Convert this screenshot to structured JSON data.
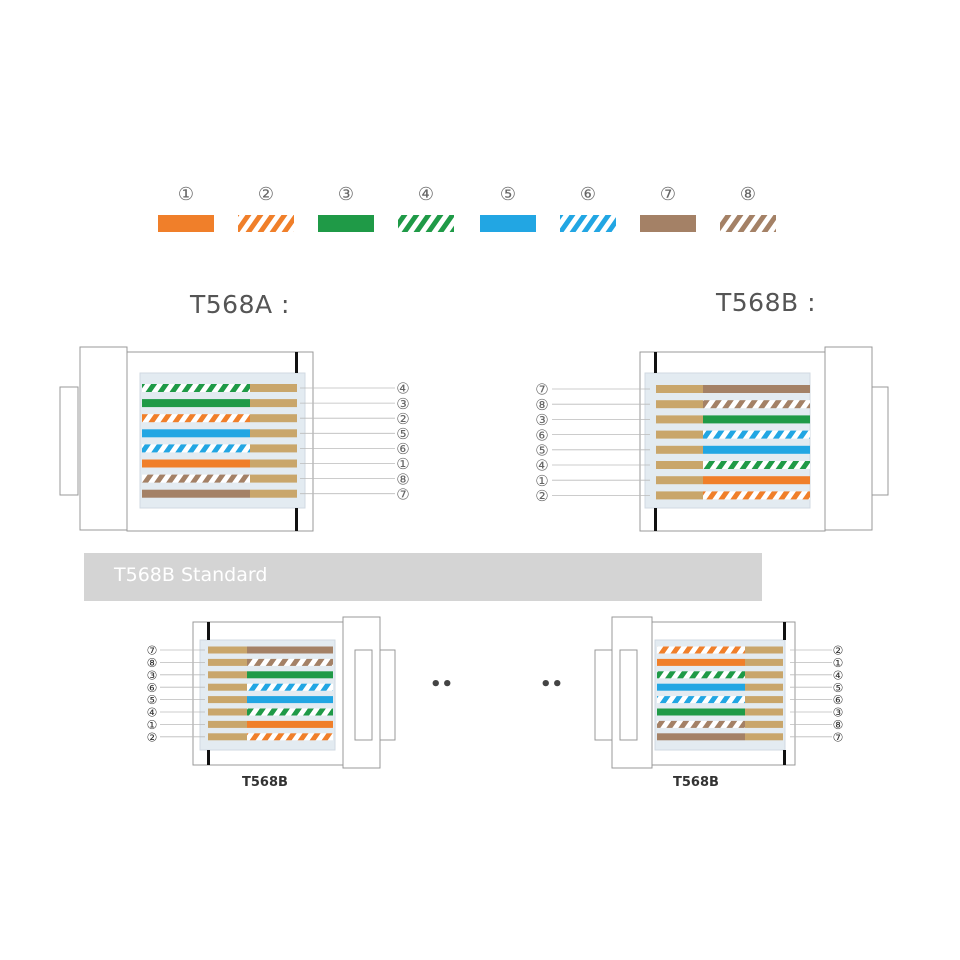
{
  "legend": [
    {
      "label": "①",
      "color": "#f07f2a",
      "striped": false
    },
    {
      "label": "②",
      "color": "#f07f2a",
      "striped": true
    },
    {
      "label": "③",
      "color": "#1f9a47",
      "striped": false
    },
    {
      "label": "④",
      "color": "#1f9a47",
      "striped": true
    },
    {
      "label": "⑤",
      "color": "#22a6e3",
      "striped": false
    },
    {
      "label": "⑥",
      "color": "#22a6e3",
      "striped": true
    },
    {
      "label": "⑦",
      "color": "#a48166",
      "striped": false
    },
    {
      "label": "⑧",
      "color": "#a48166",
      "striped": true
    }
  ],
  "contact_color": "#c9a66b",
  "titles": {
    "t568a": "T568A :",
    "t568b": "T568B :"
  },
  "banner": "T568B Standard",
  "connectors": {
    "top_a": {
      "pins": [
        4,
        3,
        2,
        5,
        6,
        1,
        8,
        7
      ]
    },
    "top_b": {
      "pins": [
        7,
        8,
        3,
        6,
        5,
        4,
        1,
        2
      ]
    },
    "bottom_left": {
      "label": "T568B",
      "pins": [
        7,
        8,
        3,
        6,
        5,
        4,
        1,
        2
      ]
    },
    "bottom_right": {
      "label": "T568B",
      "pins": [
        2,
        1,
        4,
        5,
        6,
        3,
        8,
        7
      ]
    }
  },
  "separator": "••"
}
